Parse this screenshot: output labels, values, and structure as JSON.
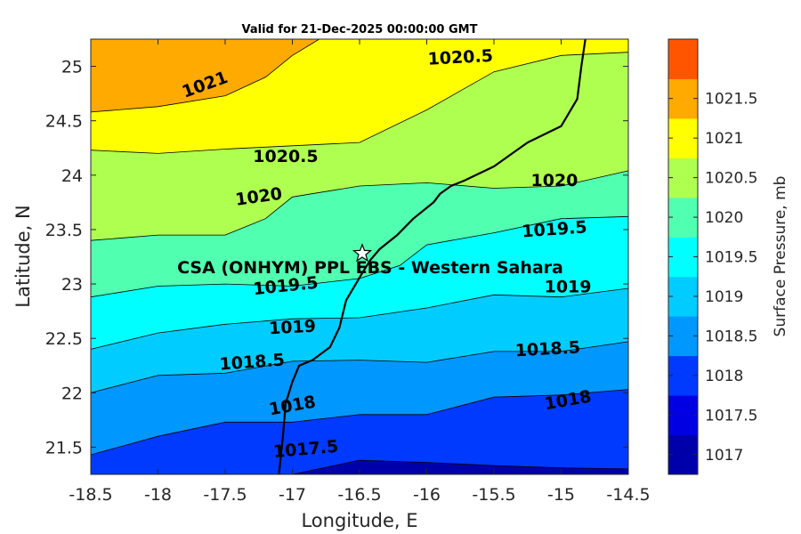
{
  "chart_data": {
    "type": "filled-contour",
    "title": "Valid for 21-Dec-2025 00:00:00 GMT",
    "xlabel": "Longitude, E",
    "ylabel": "Latitude, N",
    "xlim": [
      -18.5,
      -14.5
    ],
    "ylim": [
      21.25,
      25.25
    ],
    "xticks": [
      -18.5,
      -18,
      -17.5,
      -17,
      -16.5,
      -16,
      -15.5,
      -15,
      -14.5
    ],
    "yticks": [
      21.5,
      22,
      22.5,
      23,
      23.5,
      24,
      24.5,
      25
    ],
    "grid": false,
    "colorbar": {
      "label": "Surface Pressure, mb",
      "levels": [
        1017,
        1017.5,
        1018,
        1018.5,
        1019,
        1019.5,
        1020,
        1020.5,
        1021,
        1021.5
      ],
      "colors": [
        "#0000aa",
        "#0000e3",
        "#0039ff",
        "#0097ff",
        "#00ccff",
        "#00ffff",
        "#50ffb0",
        "#afff50",
        "#ffff00",
        "#ffaa00",
        "#ff5500"
      ]
    },
    "contours": [
      {
        "level": 1017.5,
        "points": [
          [
            -17.0,
            21.25
          ],
          [
            -16.5,
            21.38
          ],
          [
            -16.0,
            21.36
          ],
          [
            -15.5,
            21.33
          ],
          [
            -15.0,
            21.31
          ],
          [
            -14.5,
            21.3
          ]
        ]
      },
      {
        "level": 1018,
        "points": [
          [
            -18.5,
            21.43
          ],
          [
            -18.0,
            21.6
          ],
          [
            -17.5,
            21.73
          ],
          [
            -17.0,
            21.73
          ],
          [
            -16.5,
            21.8
          ],
          [
            -16.0,
            21.8
          ],
          [
            -15.5,
            21.96
          ],
          [
            -15.0,
            21.98
          ],
          [
            -14.5,
            22.03
          ]
        ]
      },
      {
        "level": 1018.5,
        "points": [
          [
            -18.5,
            22.0
          ],
          [
            -18.0,
            22.16
          ],
          [
            -17.5,
            22.18
          ],
          [
            -17.0,
            22.29
          ],
          [
            -16.5,
            22.3
          ],
          [
            -16.0,
            22.28
          ],
          [
            -15.5,
            22.38
          ],
          [
            -15.0,
            22.38
          ],
          [
            -14.5,
            22.47
          ]
        ]
      },
      {
        "level": 1019,
        "points": [
          [
            -18.5,
            22.4
          ],
          [
            -18.0,
            22.55
          ],
          [
            -17.5,
            22.63
          ],
          [
            -17.0,
            22.68
          ],
          [
            -16.5,
            22.69
          ],
          [
            -16.0,
            22.78
          ],
          [
            -15.5,
            22.9
          ],
          [
            -15.0,
            22.88
          ],
          [
            -14.5,
            22.96
          ]
        ]
      },
      {
        "level": 1019.5,
        "points": [
          [
            -18.5,
            22.88
          ],
          [
            -18.0,
            22.98
          ],
          [
            -17.5,
            23.0
          ],
          [
            -17.0,
            22.98
          ],
          [
            -16.5,
            23.05
          ],
          [
            -16.2,
            23.17
          ],
          [
            -16.0,
            23.36
          ],
          [
            -15.5,
            23.47
          ],
          [
            -15.0,
            23.6
          ],
          [
            -14.5,
            23.62
          ]
        ]
      },
      {
        "level": 1020,
        "points": [
          [
            -18.5,
            23.4
          ],
          [
            -18.0,
            23.45
          ],
          [
            -17.5,
            23.45
          ],
          [
            -17.2,
            23.6
          ],
          [
            -17.0,
            23.8
          ],
          [
            -16.5,
            23.9
          ],
          [
            -16.0,
            23.93
          ],
          [
            -15.5,
            23.88
          ],
          [
            -15.0,
            23.9
          ],
          [
            -14.5,
            24.04
          ]
        ]
      },
      {
        "level": 1020.5,
        "points": [
          [
            -18.5,
            24.23
          ],
          [
            -18.0,
            24.2
          ],
          [
            -17.5,
            24.24
          ],
          [
            -17.0,
            24.27
          ],
          [
            -16.5,
            24.3
          ],
          [
            -16.0,
            24.6
          ],
          [
            -15.5,
            24.95
          ],
          [
            -15.0,
            25.1
          ],
          [
            -14.5,
            25.13
          ]
        ]
      },
      {
        "level": 1021,
        "points": [
          [
            -18.5,
            24.58
          ],
          [
            -18.0,
            24.63
          ],
          [
            -17.5,
            24.73
          ],
          [
            -17.2,
            24.9
          ],
          [
            -17.0,
            25.1
          ],
          [
            -16.8,
            25.25
          ]
        ]
      }
    ],
    "contour_labels": [
      {
        "text": "1020.5",
        "x": -15.75,
        "y": 25.08,
        "angle": -3
      },
      {
        "text": "1021",
        "x": -17.65,
        "y": 24.83,
        "angle": -20
      },
      {
        "text": "1020.5",
        "x": -17.05,
        "y": 24.17,
        "angle": 0
      },
      {
        "text": "1020",
        "x": -17.25,
        "y": 23.8,
        "angle": -8
      },
      {
        "text": "1020",
        "x": -15.05,
        "y": 23.95,
        "angle": 0
      },
      {
        "text": "1019.5",
        "x": -15.05,
        "y": 23.5,
        "angle": -4
      },
      {
        "text": "1019.5",
        "x": -17.05,
        "y": 22.98,
        "angle": -6
      },
      {
        "text": "1019",
        "x": -14.95,
        "y": 22.97,
        "angle": 0
      },
      {
        "text": "1019",
        "x": -17.0,
        "y": 22.6,
        "angle": -3
      },
      {
        "text": "1018.5",
        "x": -17.3,
        "y": 22.28,
        "angle": -4
      },
      {
        "text": "1018.5",
        "x": -15.1,
        "y": 22.4,
        "angle": -3
      },
      {
        "text": "1018",
        "x": -17.0,
        "y": 21.88,
        "angle": -10
      },
      {
        "text": "1018",
        "x": -14.95,
        "y": 21.93,
        "angle": -10
      },
      {
        "text": "1017.5",
        "x": -16.9,
        "y": 21.48,
        "angle": -5
      }
    ],
    "site": {
      "name": "CSA (ONHYM) PPL EBS - Western Sahara",
      "lon": -16.48,
      "lat": 23.28
    },
    "coastline": [
      [
        -14.82,
        25.25
      ],
      [
        -14.85,
        25.0
      ],
      [
        -14.88,
        24.7
      ],
      [
        -15.0,
        24.45
      ],
      [
        -15.25,
        24.3
      ],
      [
        -15.5,
        24.08
      ],
      [
        -15.72,
        23.95
      ],
      [
        -15.82,
        23.9
      ],
      [
        -15.9,
        23.83
      ],
      [
        -15.95,
        23.75
      ],
      [
        -16.1,
        23.6
      ],
      [
        -16.22,
        23.45
      ],
      [
        -16.35,
        23.32
      ],
      [
        -16.42,
        23.22
      ],
      [
        -16.48,
        23.1
      ],
      [
        -16.6,
        22.85
      ],
      [
        -16.65,
        22.6
      ],
      [
        -16.72,
        22.42
      ],
      [
        -16.85,
        22.3
      ],
      [
        -16.95,
        22.25
      ],
      [
        -17.0,
        22.1
      ],
      [
        -17.05,
        21.9
      ],
      [
        -17.07,
        21.6
      ],
      [
        -17.1,
        21.25
      ]
    ]
  }
}
